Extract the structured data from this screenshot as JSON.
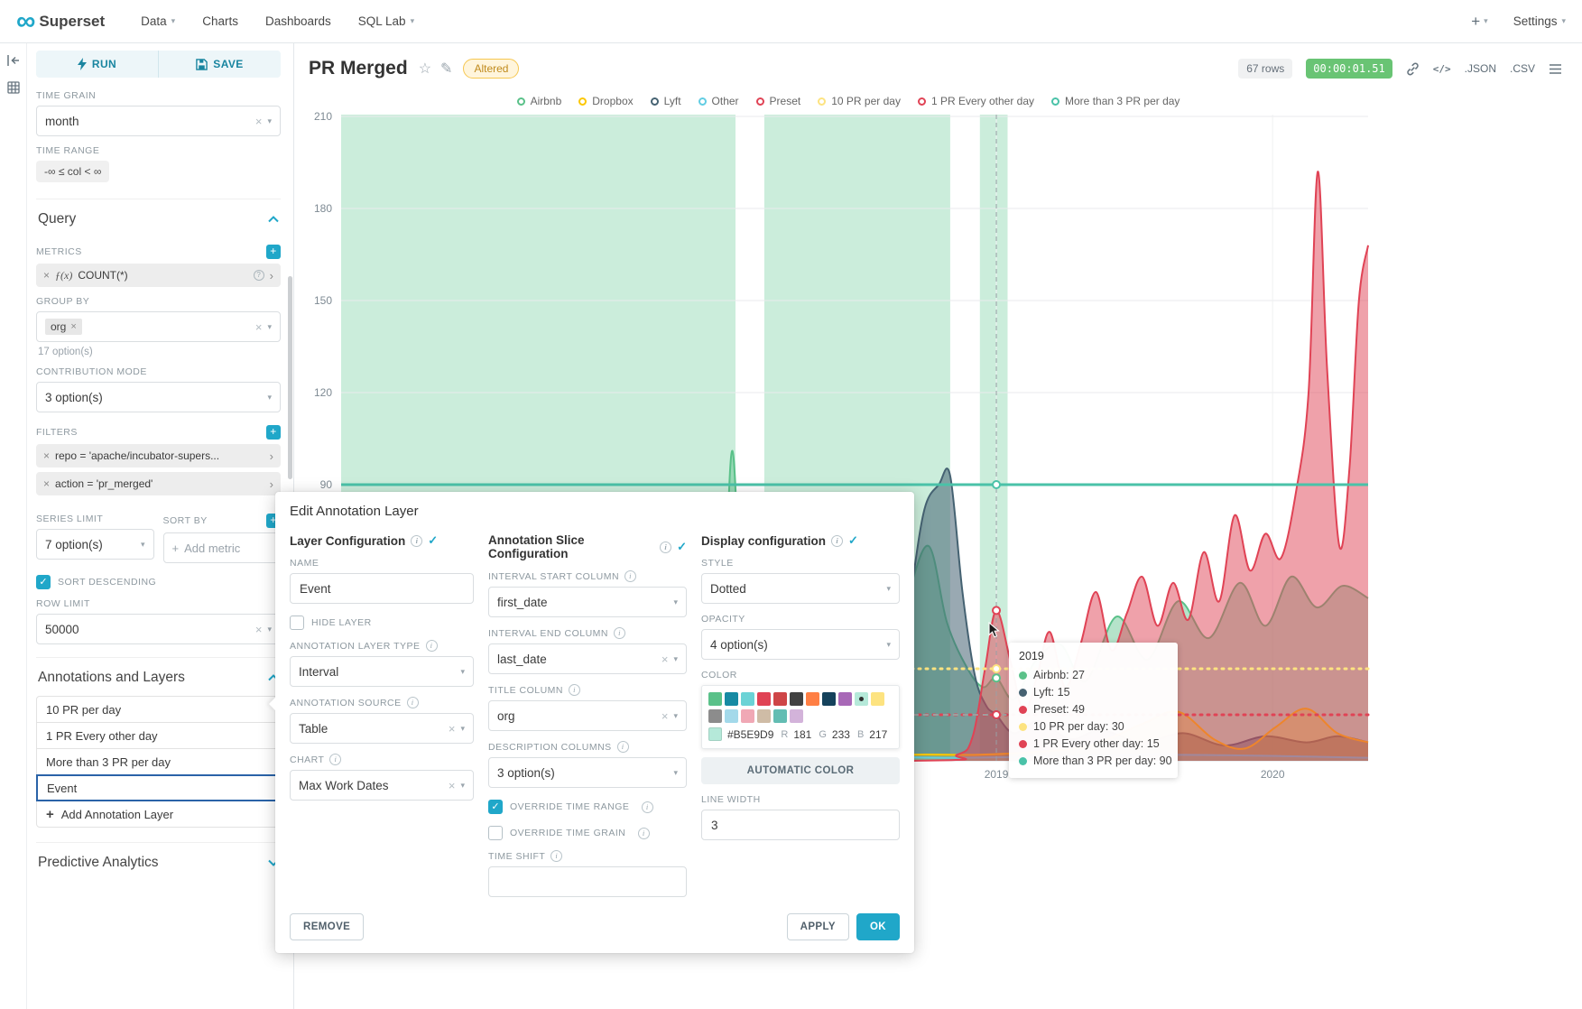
{
  "navbar": {
    "brand": "Superset",
    "items": [
      {
        "label": "Data",
        "caret": true
      },
      {
        "label": "Charts",
        "caret": false
      },
      {
        "label": "Dashboards",
        "caret": false
      },
      {
        "label": "SQL Lab",
        "caret": true
      }
    ],
    "plus": "+",
    "settings": "Settings"
  },
  "panel": {
    "run": "RUN",
    "save": "SAVE",
    "time_grain_label": "TIME GRAIN",
    "time_grain_value": "month",
    "time_range_label": "TIME RANGE",
    "time_range_value": "-∞ ≤ col < ∞",
    "query_title": "Query",
    "metrics_label": "METRICS",
    "metric_fx": "ƒ(x)",
    "metric_value": "COUNT(*)",
    "group_by_label": "GROUP BY",
    "group_by_tag": "org",
    "group_by_hint": "17 option(s)",
    "contribution_label": "CONTRIBUTION MODE",
    "contribution_value": "3 option(s)",
    "filters_label": "FILTERS",
    "filters": [
      "repo = 'apache/incubator-supers...",
      "action = 'pr_merged'"
    ],
    "series_limit_label": "SERIES LIMIT",
    "series_limit_value": "7 option(s)",
    "sort_by_label": "SORT BY",
    "sort_by_placeholder": "Add metric",
    "sort_descending_label": "SORT DESCENDING",
    "row_limit_label": "ROW LIMIT",
    "row_limit_value": "50000",
    "annotations_title": "Annotations and Layers",
    "annotation_layers": [
      "10 PR per day",
      "1 PR Every other day",
      "More than 3 PR per day",
      "Event"
    ],
    "selected_layer": "Event",
    "add_layer_label": "Add Annotation Layer",
    "predictive_title": "Predictive Analytics"
  },
  "header": {
    "title": "PR Merged",
    "altered_badge": "Altered",
    "rows_badge": "67 rows",
    "timer": "00:00:01.51",
    "json_label": ".JSON",
    "csv_label": ".CSV"
  },
  "chart_data": {
    "type": "line",
    "ylim": [
      0,
      210
    ],
    "y_ticks": [
      90,
      120,
      150,
      180,
      210
    ],
    "x_ticks": [
      {
        "label": "2019",
        "f": 0.638
      },
      {
        "label": "2020",
        "f": 0.907
      }
    ],
    "band_color": "#CBEDDB",
    "interval_bands": [
      {
        "x0": 0,
        "x1": 0.384
      },
      {
        "x0": 0.412,
        "x1": 0.593
      },
      {
        "x0": 0.622,
        "x1": 0.649
      }
    ],
    "legend": [
      {
        "label": "Airbnb",
        "color": "#5AC189"
      },
      {
        "label": "Dropbox",
        "color": "#FCC700"
      },
      {
        "label": "Lyft",
        "color": "#456272"
      },
      {
        "label": "Other",
        "color": "#62CDE3"
      },
      {
        "label": "Preset",
        "color": "#E04355"
      },
      {
        "label": "10 PR per day",
        "color": "#FDE380"
      },
      {
        "label": "1 PR Every other day",
        "color": "#E04355"
      },
      {
        "label": "More than 3 PR per day",
        "color": "#4AC2A8"
      }
    ],
    "annotation_lines": [
      {
        "label": "More than 3 PR per day",
        "value": 90,
        "style": "solid",
        "color": "#4AC2A8",
        "width": 3
      },
      {
        "label": "10 PR per day",
        "value": 30,
        "style": "dotted",
        "color": "#FDE380",
        "width": 3
      },
      {
        "label": "1 PR Every other day",
        "value": 15,
        "style": "dotted",
        "color": "#E04355",
        "width": 3
      },
      {
        "label": "",
        "value": 15,
        "style": "dashed",
        "color": "#9E9E9E",
        "width": 2,
        "x0": 0.412,
        "x1": 0.648
      }
    ],
    "series": [
      {
        "name": "Airbnb",
        "color": "#5AC189",
        "fill_opacity": 0.45,
        "points": [
          [
            0,
            2
          ],
          [
            0.06,
            4
          ],
          [
            0.12,
            6
          ],
          [
            0.18,
            9
          ],
          [
            0.22,
            7
          ],
          [
            0.27,
            11
          ],
          [
            0.31,
            8
          ],
          [
            0.35,
            13
          ],
          [
            0.37,
            30
          ],
          [
            0.381,
            101
          ],
          [
            0.393,
            22
          ],
          [
            0.41,
            9
          ],
          [
            0.45,
            12
          ],
          [
            0.49,
            15
          ],
          [
            0.52,
            20
          ],
          [
            0.55,
            52
          ],
          [
            0.572,
            70
          ],
          [
            0.59,
            45
          ],
          [
            0.61,
            30
          ],
          [
            0.625,
            24
          ],
          [
            0.638,
            27
          ],
          [
            0.655,
            20
          ],
          [
            0.675,
            32
          ],
          [
            0.7,
            38
          ],
          [
            0.725,
            26
          ],
          [
            0.755,
            47
          ],
          [
            0.785,
            33
          ],
          [
            0.815,
            52
          ],
          [
            0.845,
            40
          ],
          [
            0.875,
            58
          ],
          [
            0.9,
            44
          ],
          [
            0.925,
            60
          ],
          [
            0.95,
            50
          ],
          [
            0.975,
            57
          ],
          [
            1,
            53
          ]
        ]
      },
      {
        "name": "Lyft",
        "color": "#456272",
        "fill_opacity": 0.55,
        "points": [
          [
            0,
            0
          ],
          [
            0.3,
            0
          ],
          [
            0.4,
            1
          ],
          [
            0.47,
            2
          ],
          [
            0.51,
            5
          ],
          [
            0.54,
            18
          ],
          [
            0.555,
            55
          ],
          [
            0.568,
            82
          ],
          [
            0.582,
            90
          ],
          [
            0.593,
            93
          ],
          [
            0.605,
            55
          ],
          [
            0.617,
            28
          ],
          [
            0.628,
            18
          ],
          [
            0.638,
            15
          ],
          [
            0.655,
            9
          ],
          [
            0.68,
            13
          ],
          [
            0.71,
            7
          ],
          [
            0.74,
            10
          ],
          [
            0.78,
            6
          ],
          [
            0.82,
            9
          ],
          [
            0.86,
            5
          ],
          [
            0.9,
            8
          ],
          [
            0.94,
            6
          ],
          [
            0.97,
            8
          ],
          [
            1,
            6
          ]
        ]
      },
      {
        "name": "Dropbox",
        "color": "#FCC700",
        "fill_opacity": 0.3,
        "points": [
          [
            0,
            1
          ],
          [
            0.4,
            1
          ],
          [
            0.55,
            2
          ],
          [
            0.62,
            2
          ],
          [
            0.68,
            3
          ],
          [
            0.73,
            5
          ],
          [
            0.78,
            12
          ],
          [
            0.815,
            16
          ],
          [
            0.85,
            7
          ],
          [
            0.88,
            4
          ],
          [
            0.91,
            11
          ],
          [
            0.94,
            17
          ],
          [
            0.97,
            9
          ],
          [
            1,
            6
          ]
        ]
      },
      {
        "name": "Other",
        "color": "#62CDE3",
        "fill_opacity": 0.3,
        "points": [
          [
            0,
            1
          ],
          [
            0.2,
            1
          ],
          [
            0.4,
            2
          ],
          [
            0.6,
            1
          ],
          [
            0.8,
            2
          ],
          [
            1,
            1
          ]
        ]
      },
      {
        "name": "Preset",
        "color": "#E04355",
        "fill_opacity": 0.5,
        "points": [
          [
            0,
            0
          ],
          [
            0.55,
            0
          ],
          [
            0.6,
            2
          ],
          [
            0.615,
            8
          ],
          [
            0.627,
            30
          ],
          [
            0.638,
            49
          ],
          [
            0.652,
            32
          ],
          [
            0.665,
            16
          ],
          [
            0.678,
            28
          ],
          [
            0.69,
            42
          ],
          [
            0.705,
            24
          ],
          [
            0.72,
            38
          ],
          [
            0.735,
            55
          ],
          [
            0.75,
            36
          ],
          [
            0.765,
            48
          ],
          [
            0.78,
            60
          ],
          [
            0.795,
            44
          ],
          [
            0.81,
            58
          ],
          [
            0.825,
            46
          ],
          [
            0.84,
            68
          ],
          [
            0.855,
            52
          ],
          [
            0.87,
            80
          ],
          [
            0.885,
            62
          ],
          [
            0.9,
            74
          ],
          [
            0.915,
            66
          ],
          [
            0.93,
            88
          ],
          [
            0.942,
            120
          ],
          [
            0.951,
            192
          ],
          [
            0.96,
            128
          ],
          [
            0.972,
            70
          ],
          [
            0.982,
            96
          ],
          [
            0.991,
            150
          ],
          [
            1,
            168
          ]
        ]
      }
    ],
    "crosshair_f": 0.638
  },
  "tooltip": {
    "title": "2019",
    "rows": [
      {
        "label": "Airbnb",
        "value": 27,
        "color": "#5AC189"
      },
      {
        "label": "Lyft",
        "value": 15,
        "color": "#456272"
      },
      {
        "label": "Preset",
        "value": 49,
        "color": "#E04355"
      },
      {
        "label": "10 PR per day",
        "value": 30,
        "color": "#FDE380"
      },
      {
        "label": "1 PR Every other day",
        "value": 15,
        "color": "#E04355"
      },
      {
        "label": "More than 3 PR per day",
        "value": 90,
        "color": "#4AC2A8"
      }
    ]
  },
  "modal": {
    "title": "Edit Annotation Layer",
    "layer": {
      "section_title": "Layer Configuration",
      "name_label": "NAME",
      "name_value": "Event",
      "hide_layer_label": "HIDE LAYER",
      "type_label": "ANNOTATION LAYER TYPE",
      "type_value": "Interval",
      "source_label": "ANNOTATION SOURCE",
      "source_value": "Table",
      "chart_label": "CHART",
      "chart_value": "Max Work Dates"
    },
    "slice": {
      "section_title": "Annotation Slice Configuration",
      "interval_start_label": "INTERVAL START COLUMN",
      "interval_start_value": "first_date",
      "interval_end_label": "INTERVAL END COLUMN",
      "interval_end_value": "last_date",
      "title_column_label": "TITLE COLUMN",
      "title_column_value": "org",
      "description_columns_label": "DESCRIPTION COLUMNS",
      "description_columns_value": "3 option(s)",
      "override_time_range_label": "OVERRIDE TIME RANGE",
      "override_time_grain_label": "OVERRIDE TIME GRAIN",
      "time_shift_label": "TIME SHIFT",
      "time_shift_value": ""
    },
    "display": {
      "section_title": "Display configuration",
      "style_label": "STYLE",
      "style_value": "Dotted",
      "opacity_label": "OPACITY",
      "opacity_value": "4 option(s)",
      "color_label": "COLOR",
      "color": {
        "selected": "#B5E9D9",
        "hex": "#B5E9D9",
        "r_label": "R",
        "r": "181",
        "g_label": "G",
        "g": "233",
        "b_label": "B",
        "b": "217",
        "swatches_row1": [
          "#5AC189",
          "#168AA3",
          "#6BD3D6",
          "#E04355",
          "#CE4547",
          "#424242",
          "#FF7F44",
          "#15425C",
          "#A868B7",
          "#B5E9D9",
          "#FDE380"
        ],
        "swatches_row2": [
          "#8C8C8C",
          "#A3D9EA",
          "#F0A8B5",
          "#CFBCA6",
          "#63BDB3",
          "#D3B3DA"
        ]
      },
      "automatic_color": "AUTOMATIC COLOR",
      "line_width_label": "LINE WIDTH",
      "line_width_value": "3"
    },
    "footer": {
      "remove": "REMOVE",
      "apply": "APPLY",
      "ok": "OK"
    }
  }
}
